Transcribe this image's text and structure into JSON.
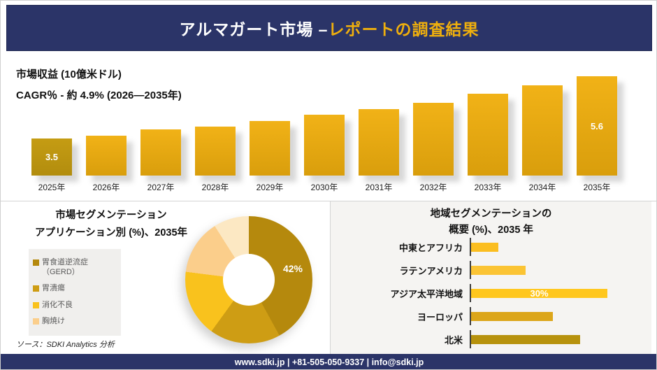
{
  "header": {
    "title_prefix": "アルマガート市場 –",
    "title_suffix": "レポートの調査結果"
  },
  "footer": {
    "text": "www.sdki.jp | +81-505-050-9337 | info@sdki.jp"
  },
  "source_note": "ソース：SDKI Analytics 分析",
  "brand_colors": {
    "navy": "#2B3468",
    "gold": "#EFAF0D"
  },
  "chart_data": [
    {
      "id": "revenue-by-year",
      "type": "bar",
      "title": "市場収益 (10億米ドル)",
      "subtitle": "CAGR％ - 約 4.9% (2026―2035年)",
      "categories": [
        "2025年",
        "2026年",
        "2027年",
        "2028年",
        "2029年",
        "2030年",
        "2031年",
        "2032年",
        "2033年",
        "2034年",
        "2035年"
      ],
      "values": [
        3.5,
        3.6,
        3.8,
        3.9,
        4.1,
        4.3,
        4.5,
        4.7,
        5.0,
        5.3,
        5.6
      ],
      "data_labels": [
        "3.5",
        "",
        "",
        "",
        "",
        "",
        "",
        "",
        "",
        "",
        "5.6"
      ],
      "ylabel": "10億米ドル",
      "grid": false,
      "bar_color": "#E3A713",
      "first_bar_color": "#BE9710"
    },
    {
      "id": "application-share-2035",
      "type": "pie",
      "title_line1": "市場セグメンテーション",
      "title_line2": "アプリケーション別 (%)、2035年",
      "donut": true,
      "legend_position": "left",
      "segments": [
        {
          "label": "胃食道逆流症（GERD）",
          "value": 42,
          "color": "#B5890D",
          "data_label": "42%"
        },
        {
          "label": "胃潰瘍",
          "value": 18,
          "color": "#CE9D14",
          "data_label": ""
        },
        {
          "label": "消化不良",
          "value": 17,
          "color": "#F9C21D",
          "data_label": ""
        },
        {
          "label": "胸焼け",
          "value": 14,
          "color": "#FBCE8B",
          "data_label": ""
        },
        {
          "label": "",
          "value": 9,
          "color": "#FCE8C3",
          "data_label": ""
        }
      ]
    },
    {
      "id": "regional-share-2035",
      "type": "bar-horizontal",
      "title_line1": "地域セグメンテーションの",
      "title_line2": "概要 (%)、2035 年",
      "categories": [
        "中東とアフリカ",
        "ラテンアメリカ",
        "アジア太平洋地域",
        "ヨーロッパ",
        "北米"
      ],
      "values": [
        6,
        12,
        30,
        18,
        24
      ],
      "data_labels": [
        "",
        "",
        "30%",
        "",
        ""
      ],
      "colors": [
        "#FBBE20",
        "#FBC434",
        "#FFC71D",
        "#DCA61A",
        "#B7920D"
      ],
      "xlim": [
        0,
        36
      ],
      "grid": false
    }
  ]
}
